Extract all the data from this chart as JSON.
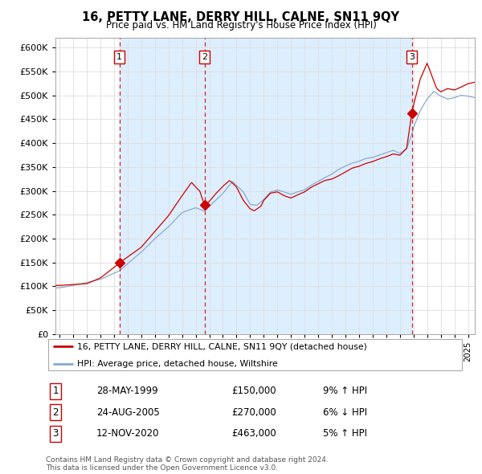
{
  "title": "16, PETTY LANE, DERRY HILL, CALNE, SN11 9QY",
  "subtitle": "Price paid vs. HM Land Registry's House Price Index (HPI)",
  "legend_property": "16, PETTY LANE, DERRY HILL, CALNE, SN11 9QY (detached house)",
  "legend_hpi": "HPI: Average price, detached house, Wiltshire",
  "copyright": "Contains HM Land Registry data © Crown copyright and database right 2024.\nThis data is licensed under the Open Government Licence v3.0.",
  "sales": [
    {
      "num": 1,
      "date_label": "28-MAY-1999",
      "price": 150000,
      "pct": "9%",
      "dir": "↑",
      "year": 1999.41
    },
    {
      "num": 2,
      "date_label": "24-AUG-2005",
      "price": 270000,
      "pct": "6%",
      "dir": "↓",
      "year": 2005.65
    },
    {
      "num": 3,
      "date_label": "12-NOV-2020",
      "price": 463000,
      "pct": "5%",
      "dir": "↑",
      "year": 2020.87
    }
  ],
  "ylim": [
    0,
    620000
  ],
  "yticks": [
    0,
    50000,
    100000,
    150000,
    200000,
    250000,
    300000,
    350000,
    400000,
    450000,
    500000,
    550000,
    600000
  ],
  "xlim_start": 1994.7,
  "xlim_end": 2025.5,
  "plot_bg": "#ffffff",
  "span_color": "#ddeeff",
  "grid_color": "#dddddd",
  "property_color": "#cc0000",
  "hpi_color": "#88aacc",
  "sale_marker_color": "#cc0000",
  "dashed_color": "#cc0000",
  "box_edge_color": "#cc0000"
}
